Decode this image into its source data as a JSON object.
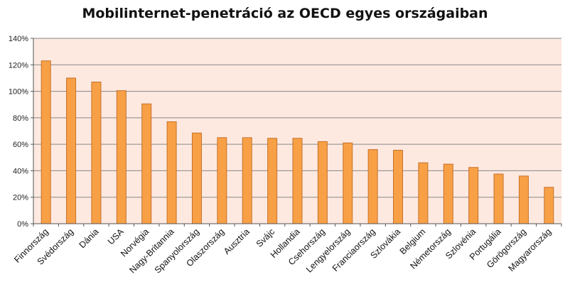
{
  "chart_data": {
    "type": "bar",
    "title": "Mobilinternet-penetráció az OECD egyes országaiban",
    "xlabel": "",
    "ylabel": "",
    "ylim": [
      0,
      140
    ],
    "y_tick_step": 20,
    "y_tick_suffix": "%",
    "grid": true,
    "legend": "none",
    "categories": [
      "Finnország",
      "Svédország",
      "Dánia",
      "USA",
      "Norvégia",
      "Nagy-Britannia",
      "Spanyolország",
      "Olaszország",
      "Ausztria",
      "Svájc",
      "Hollandia",
      "Csehország",
      "Lengyelország",
      "Franciaország",
      "Szlovákia",
      "Belgium",
      "Németország",
      "Szlovénia",
      "Portugália",
      "Görögország",
      "Magyarország"
    ],
    "values": [
      123,
      110,
      107,
      100.5,
      90.5,
      77,
      68.5,
      65,
      65,
      64.5,
      64.5,
      62,
      61,
      56,
      55.5,
      46,
      45,
      42.5,
      37.5,
      36,
      27.5
    ],
    "colors": {
      "bar_fill": "#f7a046",
      "bar_stroke": "#c7712a",
      "plot_bg": "#fde9e0",
      "grid": "#888888"
    }
  }
}
